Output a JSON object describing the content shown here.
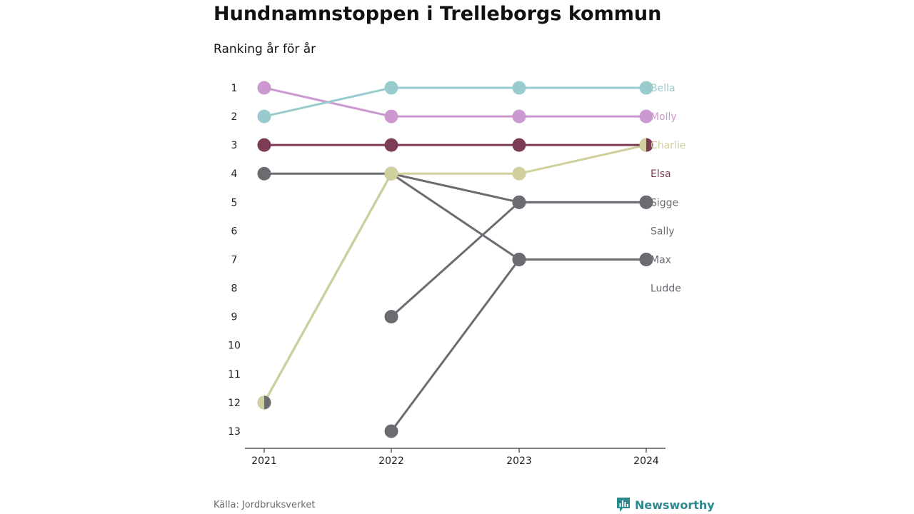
{
  "title": "Hundnamnstoppen i Trelleborgs kommun",
  "subtitle": "Ranking år för år",
  "source": "Källa: Jordbruksverket",
  "brand": "Newsworthy",
  "colors": {
    "brand": "#2c8a8f",
    "axis": "#333333",
    "text": "#222222"
  },
  "chart_data": {
    "type": "line",
    "x": [
      "2021",
      "2022",
      "2023",
      "2024"
    ],
    "y_ticks": [
      1,
      2,
      3,
      4,
      5,
      6,
      7,
      8,
      9,
      10,
      11,
      12,
      13
    ],
    "ylim": [
      1,
      13
    ],
    "y_reversed": true,
    "grid": false,
    "series": [
      {
        "name": "Ludde",
        "color": "#6d6b72",
        "values": [
          null,
          13,
          7,
          7
        ]
      },
      {
        "name": "Sally",
        "color": "#6d6b72",
        "values": [
          null,
          9,
          5,
          5
        ]
      },
      {
        "name": "Max",
        "color": "#6d6b72",
        "values": [
          4,
          4,
          7,
          7
        ]
      },
      {
        "name": "Sigge",
        "color": "#6d6b72",
        "values": [
          12,
          4,
          5,
          5
        ]
      },
      {
        "name": "Charlie",
        "color": "#cfd09c",
        "values": [
          12,
          4,
          4,
          3
        ]
      },
      {
        "name": "Elsa",
        "color": "#7c3c55",
        "values": [
          3,
          3,
          3,
          3
        ]
      },
      {
        "name": "Molly",
        "color": "#cb98cf",
        "values": [
          1,
          2,
          2,
          2
        ]
      },
      {
        "name": "Bella",
        "color": "#98cbcd",
        "values": [
          2,
          1,
          1,
          1
        ]
      }
    ],
    "end_labels": [
      {
        "name": "Bella",
        "rank": 1,
        "color": "#98cbcd"
      },
      {
        "name": "Molly",
        "rank": 2,
        "color": "#cb98cf"
      },
      {
        "name": "Charlie",
        "rank": 3,
        "color": "#cfd09c"
      },
      {
        "name": "Elsa",
        "rank": 4,
        "color": "#7c3c55"
      },
      {
        "name": "Sigge",
        "rank": 5,
        "color": "#6d6b72"
      },
      {
        "name": "Sally",
        "rank": 6,
        "color": "#6d6b72"
      },
      {
        "name": "Max",
        "rank": 7,
        "color": "#6d6b72"
      },
      {
        "name": "Ludde",
        "rank": 8,
        "color": "#6d6b72"
      }
    ]
  }
}
